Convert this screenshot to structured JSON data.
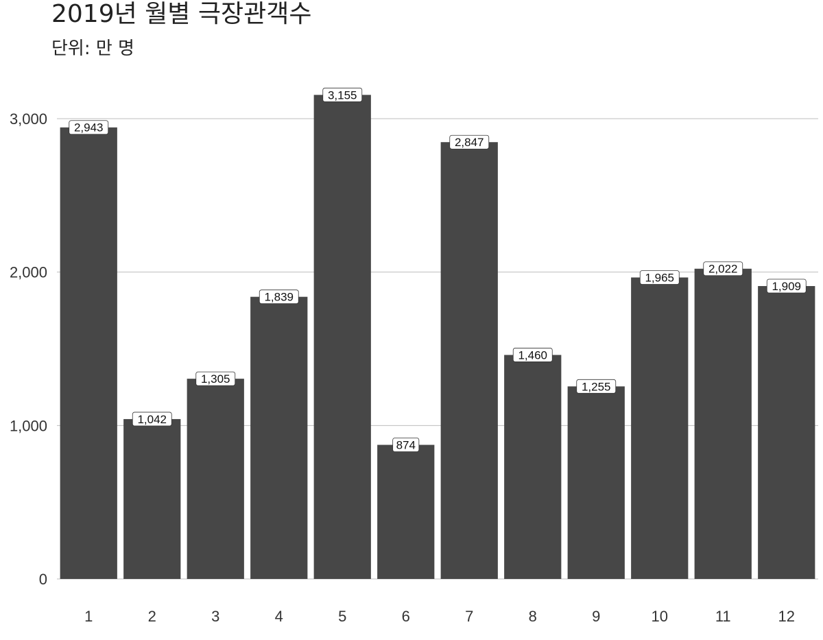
{
  "chart_data": {
    "type": "bar",
    "title": "2019년 월별 극장관객수",
    "subtitle": "단위: 만 명",
    "xlabel": "",
    "ylabel": "",
    "categories": [
      "1",
      "2",
      "3",
      "4",
      "5",
      "6",
      "7",
      "8",
      "9",
      "10",
      "11",
      "12"
    ],
    "values": [
      2943,
      1042,
      1305,
      1839,
      3155,
      874,
      2847,
      1460,
      1255,
      1965,
      2022,
      1909
    ],
    "data_labels": [
      "2,943",
      "1,042",
      "1,305",
      "1,839",
      "3,155",
      "874",
      "2,847",
      "1,460",
      "1,255",
      "1,965",
      "2,022",
      "1,909"
    ],
    "y_ticks": [
      0,
      1000,
      2000,
      3000
    ],
    "y_tick_labels": [
      "0",
      "1,000",
      "2,000",
      "3,000"
    ],
    "ylim": [
      0,
      3300
    ],
    "grid": "horizontal",
    "legend": "none",
    "colors": {
      "bar": "#474747",
      "grid": "#bdbdbd",
      "label_bg": "#ffffff",
      "label_border": "#333333"
    }
  }
}
